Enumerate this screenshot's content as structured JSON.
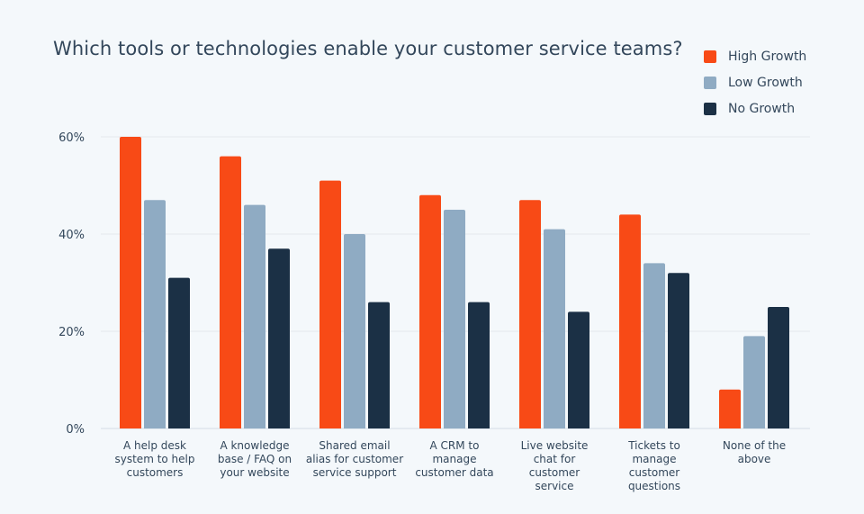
{
  "chart_data": {
    "type": "bar",
    "title": "Which tools or technologies enable your customer service teams?",
    "categories": [
      "A help desk system to help customers",
      "A knowledge base / FAQ on your website",
      "Shared email alias for customer service support",
      "A CRM to manage customer data",
      "Live website chat for customer service",
      "Tickets to manage customer questions",
      "None of the above"
    ],
    "category_lines": [
      [
        "A help desk",
        "system to help",
        "customers"
      ],
      [
        "A knowledge",
        "base / FAQ on",
        "your website"
      ],
      [
        "Shared email",
        "alias for customer",
        "service support"
      ],
      [
        "A CRM to",
        "manage",
        "customer data"
      ],
      [
        "Live website",
        "chat for",
        "customer",
        "service"
      ],
      [
        "Tickets to",
        "manage",
        "customer",
        "questions"
      ],
      [
        "None of the",
        "above"
      ]
    ],
    "series": [
      {
        "name": "High Growth",
        "color": "#f84a16",
        "values": [
          60,
          56,
          51,
          48,
          47,
          44,
          8
        ]
      },
      {
        "name": "Low Growth",
        "color": "#8fabc3",
        "values": [
          47,
          46,
          40,
          45,
          41,
          34,
          19
        ]
      },
      {
        "name": "No Growth",
        "color": "#1b3045",
        "values": [
          31,
          37,
          26,
          26,
          24,
          32,
          25
        ]
      }
    ],
    "yticks": [
      "0%",
      "20%",
      "40%",
      "60%"
    ],
    "ytick_values": [
      0,
      20,
      40,
      60
    ],
    "ylim": [
      0,
      60
    ],
    "xlabel": "",
    "ylabel": "",
    "grid": true,
    "legend_placement": "top-right"
  }
}
